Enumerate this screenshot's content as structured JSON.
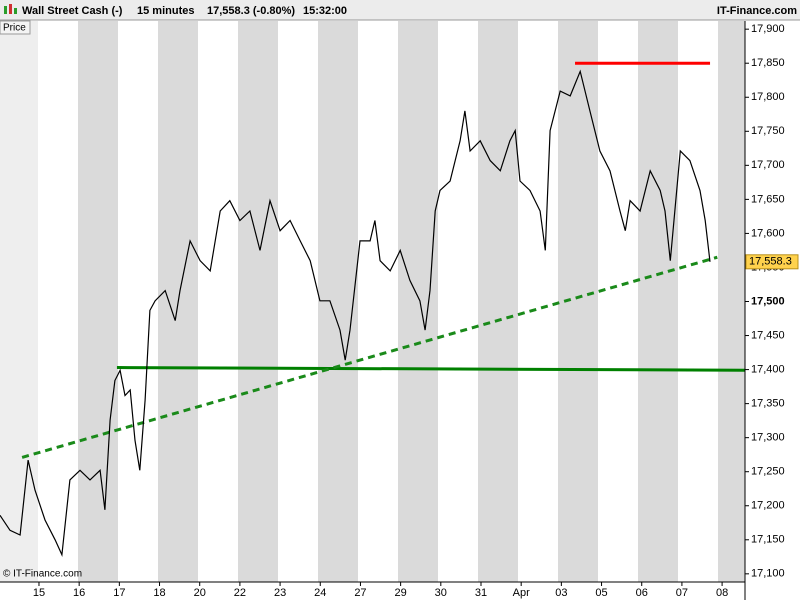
{
  "chart_data": {
    "type": "line",
    "title": "Wall Street Cash (-)",
    "interval": "15 minutes",
    "last_quote": "17,558.3 (-0.80%)",
    "time": "15:32:00",
    "brand": "IT-Finance.com",
    "panel_label": "Price",
    "copyright": "© IT-Finance.com",
    "price_tag": "17,558.3",
    "bold_ytick": 17500,
    "xlim": [
      -0.97,
      17.57
    ],
    "xticks": [
      {
        "value": 0,
        "label": "15"
      },
      {
        "value": 1,
        "label": "16"
      },
      {
        "value": 2,
        "label": "17"
      },
      {
        "value": 3,
        "label": "18"
      },
      {
        "value": 4,
        "label": "20"
      },
      {
        "value": 5,
        "label": "22"
      },
      {
        "value": 6,
        "label": "23"
      },
      {
        "value": 7,
        "label": "24"
      },
      {
        "value": 8,
        "label": "27"
      },
      {
        "value": 9,
        "label": "29"
      },
      {
        "value": 10,
        "label": "30"
      },
      {
        "value": 11,
        "label": "31"
      },
      {
        "value": 12,
        "label": "Apr"
      },
      {
        "value": 13,
        "label": "03"
      },
      {
        "value": 14,
        "label": "05"
      },
      {
        "value": 15,
        "label": "06"
      },
      {
        "value": 16,
        "label": "07"
      },
      {
        "value": 17,
        "label": "08"
      }
    ],
    "ylim": [
      17088,
      17912
    ],
    "yticks": [
      {
        "value": 17100,
        "label": "17,100"
      },
      {
        "value": 17150,
        "label": "17,150"
      },
      {
        "value": 17200,
        "label": "17,200"
      },
      {
        "value": 17250,
        "label": "17,250"
      },
      {
        "value": 17300,
        "label": "17,300"
      },
      {
        "value": 17350,
        "label": "17,350"
      },
      {
        "value": 17400,
        "label": "17,400"
      },
      {
        "value": 17450,
        "label": "17,450"
      },
      {
        "value": 17500,
        "label": "17,500"
      },
      {
        "value": 17550,
        "label": "17,550"
      },
      {
        "value": 17600,
        "label": "17,600"
      },
      {
        "value": 17650,
        "label": "17,650"
      },
      {
        "value": 17700,
        "label": "17,700"
      },
      {
        "value": 17750,
        "label": "17,750"
      },
      {
        "value": 17800,
        "label": "17,800"
      },
      {
        "value": 17850,
        "label": "17,850"
      },
      {
        "value": 17900,
        "label": "17,900"
      }
    ],
    "series": [
      {
        "name": "Price",
        "color": "#000000",
        "x": [
          -0.97,
          -0.72,
          -0.47,
          -0.27,
          -0.1,
          0.15,
          0.4,
          0.57,
          0.77,
          1.02,
          1.27,
          1.52,
          1.64,
          1.77,
          1.89,
          2.02,
          2.14,
          2.27,
          2.39,
          2.51,
          2.64,
          2.76,
          2.89,
          3.14,
          3.39,
          3.51,
          3.76,
          4.01,
          4.26,
          4.51,
          4.75,
          5.0,
          5.25,
          5.5,
          5.75,
          6.0,
          6.25,
          6.5,
          6.75,
          6.99,
          7.24,
          7.49,
          7.62,
          7.74,
          7.99,
          8.24,
          8.36,
          8.49,
          8.74,
          8.99,
          9.23,
          9.48,
          9.61,
          9.73,
          9.86,
          9.98,
          10.23,
          10.48,
          10.6,
          10.73,
          10.98,
          11.23,
          11.48,
          11.72,
          11.85,
          11.97,
          12.22,
          12.47,
          12.6,
          12.72,
          12.97,
          13.22,
          13.47,
          13.71,
          13.96,
          14.21,
          14.46,
          14.59,
          14.71,
          14.96,
          15.21,
          15.46,
          15.58,
          15.71,
          15.96,
          16.2,
          16.45,
          16.58,
          16.7
        ],
        "values": [
          17186,
          17164,
          17157,
          17267,
          17223,
          17179,
          17150,
          17128,
          17238,
          17252,
          17238,
          17252,
          17194,
          17326,
          17384,
          17399,
          17362,
          17370,
          17296,
          17252,
          17355,
          17487,
          17501,
          17516,
          17472,
          17516,
          17589,
          17560,
          17545,
          17633,
          17648,
          17619,
          17633,
          17575,
          17648,
          17604,
          17619,
          17589,
          17560,
          17501,
          17501,
          17458,
          17414,
          17458,
          17589,
          17589,
          17619,
          17560,
          17545,
          17575,
          17531,
          17501,
          17458,
          17516,
          17633,
          17663,
          17677,
          17736,
          17780,
          17721,
          17736,
          17707,
          17692,
          17736,
          17751,
          17677,
          17663,
          17633,
          17575,
          17751,
          17809,
          17802,
          17838,
          17780,
          17721,
          17692,
          17633,
          17604,
          17648,
          17633,
          17692,
          17663,
          17633,
          17560,
          17721,
          17707,
          17663,
          17619,
          17558.3
        ]
      }
    ],
    "lines": [
      {
        "color": "#ff0000",
        "style": "solid",
        "x": [
          13.34,
          16.7
        ],
        "y": [
          17850,
          17850
        ]
      },
      {
        "color": "#008000",
        "style": "solid",
        "x": [
          1.94,
          17.57
        ],
        "y": [
          17403,
          17399
        ]
      },
      {
        "color": "#1a8a1a",
        "style": "dashed",
        "x": [
          -0.42,
          16.88
        ],
        "y": [
          17271,
          17565
        ]
      }
    ]
  }
}
